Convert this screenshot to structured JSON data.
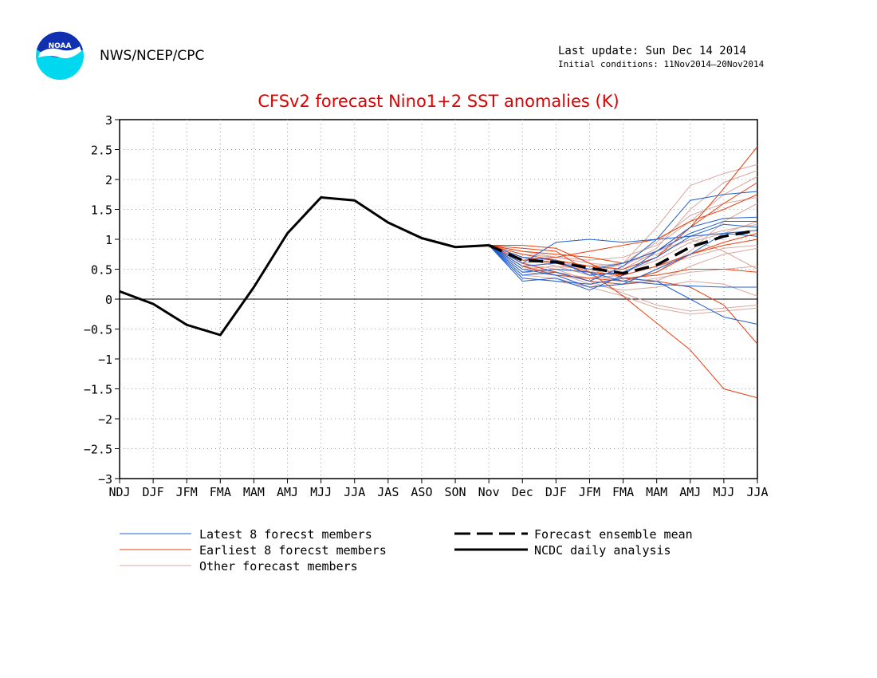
{
  "header": {
    "agency": "NWS/NCEP/CPC",
    "last_update": "Last update: Sun Dec 14 2014",
    "initial_conditions": "Initial conditions: 11Nov2014–20Nov2014",
    "logo_text": "NOAA"
  },
  "colors": {
    "latest": "#2060d0",
    "earliest": "#e84010",
    "other": "#d8a8a0",
    "zero_line": "#000000",
    "title": "#e00000"
  },
  "chart_data": {
    "type": "line",
    "title": "CFSv2 forecast Nino1+2 SST anomalies (K)",
    "categories": [
      "NDJ",
      "DJF",
      "JFM",
      "FMA",
      "MAM",
      "AMJ",
      "MJJ",
      "JJA",
      "JAS",
      "ASO",
      "SON",
      "Nov",
      "Dec",
      "DJF",
      "JFM",
      "FMA",
      "MAM",
      "AMJ",
      "MJJ",
      "JJA"
    ],
    "ylim": [
      -3,
      3
    ],
    "yticks": [
      3,
      2.5,
      2,
      1.5,
      1,
      0.5,
      0,
      -0.5,
      -1,
      -1.5,
      -2,
      -2.5,
      -3
    ],
    "ytick_labels": [
      "3",
      "2.5",
      "2",
      "1.5",
      "1",
      "0.5",
      "0",
      "−0.5",
      "−1",
      "−1.5",
      "−2",
      "−2.5",
      "−3"
    ],
    "grid": true,
    "legend": {
      "placement": "bottom",
      "latest": "Latest 8 forecst members",
      "earliest": "Earliest 8 forecst members",
      "other": "Other forecast members",
      "mean": "Forecast ensemble mean",
      "analysis": "NCDC daily analysis"
    },
    "analysis": [
      0.13,
      -0.08,
      -0.43,
      -0.6,
      0.2,
      1.1,
      1.7,
      1.65,
      1.28,
      1.02,
      0.87,
      0.9
    ],
    "ensemble_mean": [
      0.9,
      0.65,
      0.62,
      0.52,
      0.43,
      0.57,
      0.87,
      1.05,
      1.15
    ],
    "latest_members": [
      [
        0.9,
        0.3,
        0.35,
        0.15,
        0.4,
        0.8,
        1.2,
        1.35,
        1.37
      ],
      [
        0.9,
        0.4,
        0.45,
        0.3,
        0.55,
        1.0,
        1.65,
        1.75,
        1.8
      ],
      [
        0.9,
        0.5,
        0.4,
        0.2,
        0.25,
        0.5,
        0.75,
        1.1,
        1.05
      ],
      [
        0.9,
        0.45,
        0.5,
        0.45,
        0.3,
        0.25,
        0.22,
        0.2,
        0.2
      ],
      [
        0.9,
        0.6,
        0.95,
        1.0,
        0.95,
        1.0,
        1.05,
        1.1,
        1.15
      ],
      [
        0.9,
        0.35,
        0.3,
        0.25,
        0.35,
        0.3,
        0.0,
        -0.3,
        -0.42
      ],
      [
        0.9,
        0.55,
        0.6,
        0.5,
        0.6,
        0.8,
        1.1,
        1.3,
        1.3
      ],
      [
        0.9,
        0.7,
        0.65,
        0.4,
        0.45,
        0.7,
        1.05,
        1.25,
        1.2
      ]
    ],
    "earliest_members": [
      [
        0.9,
        0.85,
        0.8,
        0.45,
        0.05,
        -0.4,
        -0.85,
        -1.5,
        -1.65
      ],
      [
        0.9,
        0.75,
        0.65,
        0.55,
        0.5,
        0.7,
        1.2,
        1.85,
        2.55
      ],
      [
        0.9,
        0.6,
        0.45,
        0.3,
        0.25,
        0.3,
        0.2,
        -0.1,
        -0.75
      ],
      [
        0.9,
        0.8,
        0.75,
        0.7,
        0.6,
        0.8,
        1.2,
        1.6,
        1.95
      ],
      [
        0.9,
        0.7,
        0.6,
        0.45,
        0.4,
        0.55,
        0.75,
        0.9,
        1.0
      ],
      [
        0.9,
        0.65,
        0.7,
        0.8,
        0.9,
        1.0,
        1.3,
        1.5,
        1.75
      ],
      [
        0.9,
        0.9,
        0.85,
        0.6,
        0.35,
        0.4,
        0.5,
        0.5,
        0.45
      ],
      [
        0.9,
        0.55,
        0.4,
        0.35,
        0.3,
        0.45,
        0.75,
        0.95,
        1.1
      ]
    ],
    "other_members": [
      [
        0.9,
        0.5,
        0.55,
        0.4,
        0.6,
        1.2,
        1.9,
        2.1,
        2.25
      ],
      [
        0.9,
        0.6,
        0.5,
        0.3,
        0.1,
        -0.1,
        -0.2,
        -0.15,
        -0.1
      ],
      [
        0.9,
        0.45,
        0.4,
        0.35,
        0.5,
        0.8,
        1.0,
        0.8,
        0.5
      ],
      [
        0.9,
        0.7,
        0.55,
        0.4,
        0.3,
        0.45,
        0.8,
        1.3,
        1.6
      ],
      [
        0.9,
        0.55,
        0.45,
        0.25,
        0.15,
        0.2,
        0.3,
        0.25,
        0.05
      ],
      [
        0.9,
        0.75,
        0.7,
        0.65,
        0.7,
        0.9,
        1.3,
        1.75,
        2.05
      ],
      [
        0.9,
        0.4,
        0.35,
        0.2,
        0.05,
        -0.15,
        -0.25,
        -0.2,
        -0.15
      ],
      [
        0.9,
        0.65,
        0.6,
        0.55,
        0.6,
        0.75,
        1.0,
        1.15,
        1.25
      ],
      [
        0.9,
        0.5,
        0.45,
        0.35,
        0.4,
        0.55,
        0.7,
        0.85,
        0.9
      ],
      [
        0.9,
        0.8,
        0.7,
        0.6,
        0.55,
        0.85,
        1.5,
        1.95,
        2.15
      ],
      [
        0.9,
        0.35,
        0.3,
        0.2,
        0.25,
        0.35,
        0.45,
        0.5,
        0.55
      ],
      [
        0.9,
        0.6,
        0.65,
        0.5,
        0.45,
        0.65,
        0.95,
        1.1,
        1.3
      ],
      [
        0.9,
        0.7,
        0.55,
        0.5,
        0.35,
        0.3,
        0.55,
        0.75,
        0.85
      ],
      [
        0.9,
        0.45,
        0.5,
        0.45,
        0.6,
        0.95,
        1.4,
        1.6,
        1.7
      ]
    ]
  }
}
